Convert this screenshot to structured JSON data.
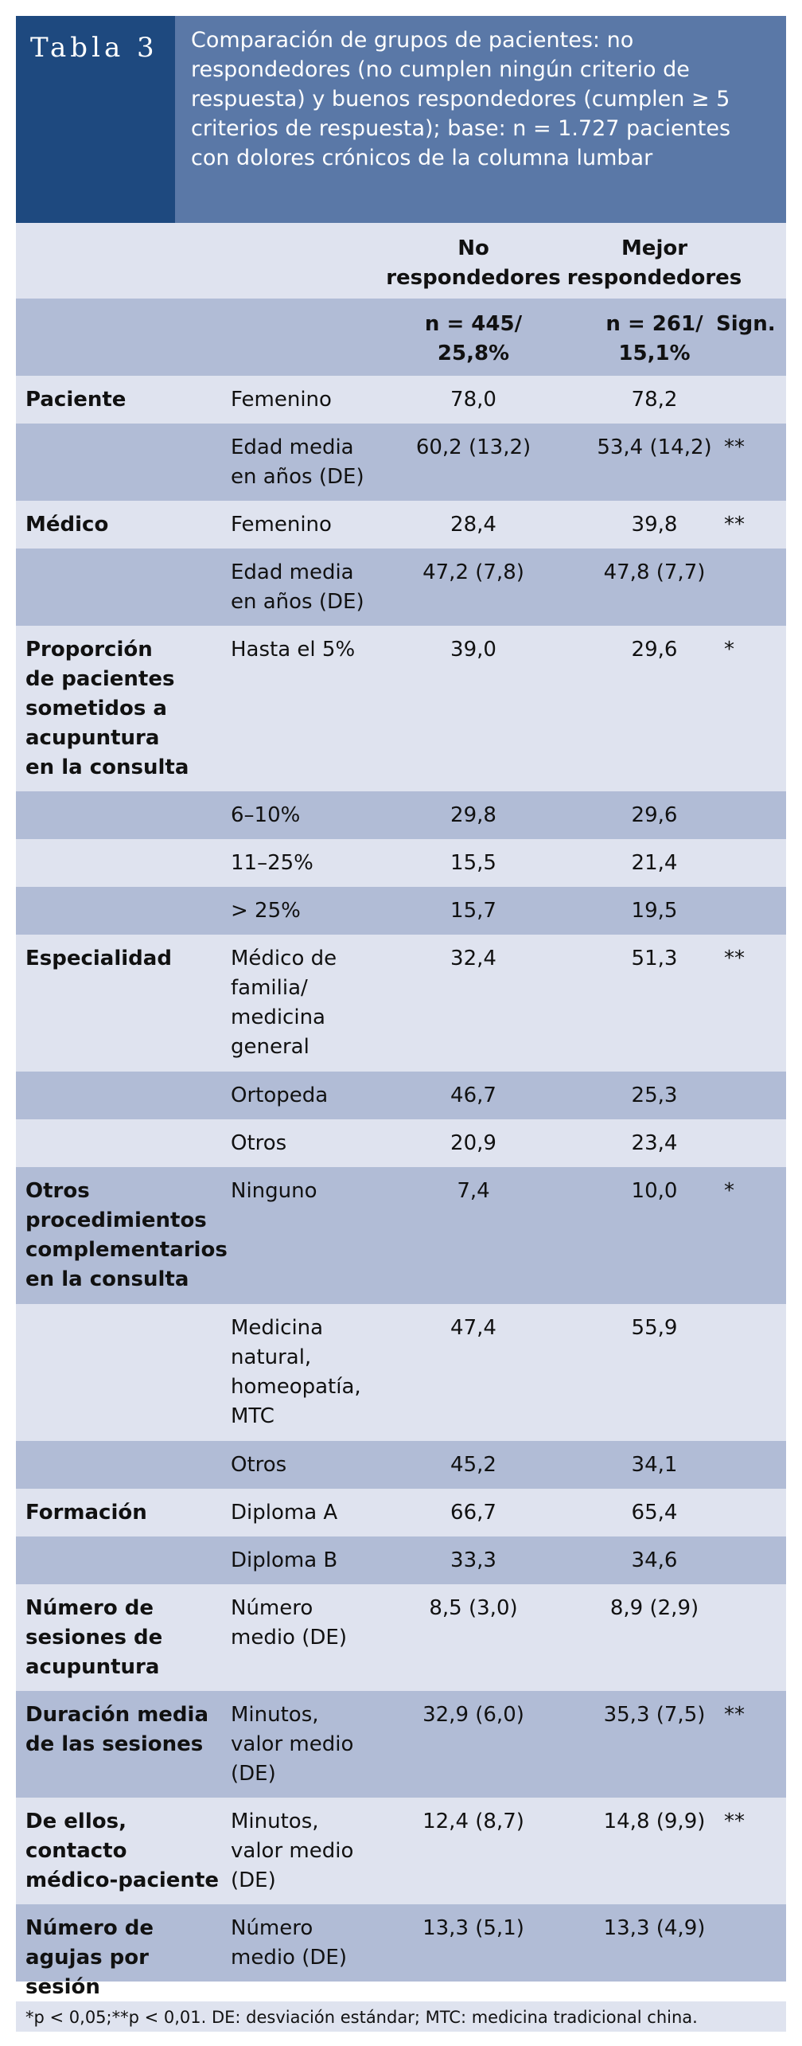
{
  "header": {
    "label": "Tabla 3",
    "title": "Comparación de grupos de pacientes: no respondedores (no cumplen ningún criterio de respuesta) y buenos respondedores (cumplen ≥ 5 criterios de respuesta); base: n = 1.727 pacientes con dolores crónicos de la columna lumbar"
  },
  "columns": {
    "no_resp": "No\nrespondedores",
    "mejor_resp": "Mejor\nrespondedores",
    "no_resp_n": "n = 445/\n25,8%",
    "mejor_resp_n": "n = 261/\n15,1%",
    "sign": "Sign."
  },
  "rows": [
    {
      "group": "Paciente",
      "item": "Femenino",
      "v1": "78,0",
      "v2": "78,2",
      "sign": ""
    },
    {
      "group": "",
      "item": "Edad media\nen años (DE)",
      "v1": "60,2 (13,2)",
      "v2": "53,4 (14,2)",
      "sign": "**"
    },
    {
      "group": "Médico",
      "item": "Femenino",
      "v1": "28,4",
      "v2": "39,8",
      "sign": "**"
    },
    {
      "group": "",
      "item": "Edad media\nen años (DE)",
      "v1": "47,2 (7,8)",
      "v2": "47,8 (7,7)",
      "sign": ""
    },
    {
      "group": "Proporción\nde pacientes\nsometidos a\nacupuntura\nen la consulta",
      "item": "Hasta el 5%",
      "v1": "39,0",
      "v2": "29,6",
      "sign": "*"
    },
    {
      "group": "",
      "item": "6–10%",
      "v1": "29,8",
      "v2": "29,6",
      "sign": ""
    },
    {
      "group": "",
      "item": "11–25%",
      "v1": "15,5",
      "v2": "21,4",
      "sign": ""
    },
    {
      "group": "",
      "item": "> 25%",
      "v1": "15,7",
      "v2": "19,5",
      "sign": ""
    },
    {
      "group": "Especialidad",
      "item": "Médico de\nfamilia/\nmedicina\ngeneral",
      "v1": "32,4",
      "v2": "51,3",
      "sign": "**"
    },
    {
      "group": "",
      "item": "Ortopeda",
      "v1": "46,7",
      "v2": "25,3",
      "sign": ""
    },
    {
      "group": "",
      "item": "Otros",
      "v1": "20,9",
      "v2": "23,4",
      "sign": ""
    },
    {
      "group": "Otros\nprocedimientos\ncomplementarios\nen la consulta",
      "item": "Ninguno",
      "v1": "7,4",
      "v2": "10,0",
      "sign": "*"
    },
    {
      "group": "",
      "item": "Medicina\nnatural,\nhomeopatía,\nMTC",
      "v1": "47,4",
      "v2": "55,9",
      "sign": ""
    },
    {
      "group": "",
      "item": "Otros",
      "v1": "45,2",
      "v2": "34,1",
      "sign": ""
    },
    {
      "group": "Formación",
      "item": "Diploma A",
      "v1": "66,7",
      "v2": "65,4",
      "sign": ""
    },
    {
      "group": "",
      "item": "Diploma B",
      "v1": "33,3",
      "v2": "34,6",
      "sign": ""
    },
    {
      "group": "Número de\nsesiones de\nacupuntura",
      "item": "Número\nmedio (DE)",
      "v1": "8,5 (3,0)",
      "v2": "8,9 (2,9)",
      "sign": ""
    },
    {
      "group": "Duración media\nde las sesiones",
      "item": "Minutos,\nvalor medio\n(DE)",
      "v1": "32,9 (6,0)",
      "v2": "35,3 (7,5)",
      "sign": "**"
    },
    {
      "group": "De ellos, contacto\nmédico-paciente",
      "item": "Minutos,\nvalor medio\n(DE)",
      "v1": "12,4 (8,7)",
      "v2": "14,8 (9,9)",
      "sign": "**"
    },
    {
      "group": "Número de\nagujas por sesión",
      "item": "Número\nmedio (DE)",
      "v1": "13,3 (5,1)",
      "v2": "13,3 (4,9)",
      "sign": ""
    }
  ],
  "footnote": "*p < 0,05;**p < 0,01. DE: desviación estándar; MTC: medicina tradicional china."
}
